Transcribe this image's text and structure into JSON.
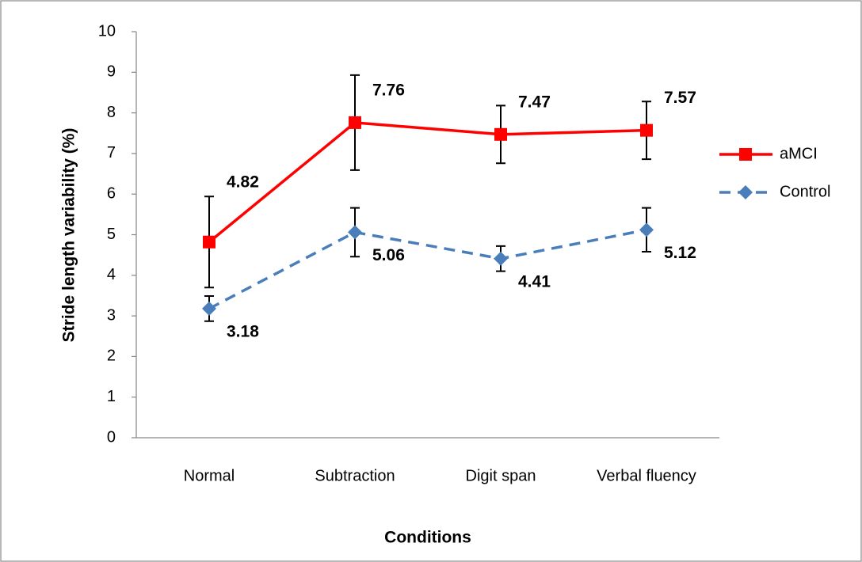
{
  "chart_data": {
    "type": "line",
    "x_label": "Conditions",
    "y_label": "Stride length variability (%)",
    "categories": [
      "Normal",
      "Subtraction",
      "Digit span",
      "Verbal fluency"
    ],
    "series": [
      {
        "name": "aMCI",
        "color": "#ff0000",
        "marker": "square",
        "dashed": false,
        "values": [
          4.82,
          7.76,
          7.47,
          7.57
        ],
        "errors": [
          1.12,
          1.17,
          0.71,
          0.71
        ]
      },
      {
        "name": "Control",
        "color": "#4a7ebb",
        "marker": "diamond",
        "dashed": true,
        "values": [
          3.18,
          5.06,
          4.41,
          5.12
        ],
        "errors": [
          0.31,
          0.6,
          0.31,
          0.54
        ]
      }
    ],
    "ylim": [
      0,
      10
    ],
    "yticks": [
      0,
      1,
      2,
      3,
      4,
      5,
      6,
      7,
      8,
      9,
      10
    ],
    "grid": false,
    "legend": "right"
  }
}
